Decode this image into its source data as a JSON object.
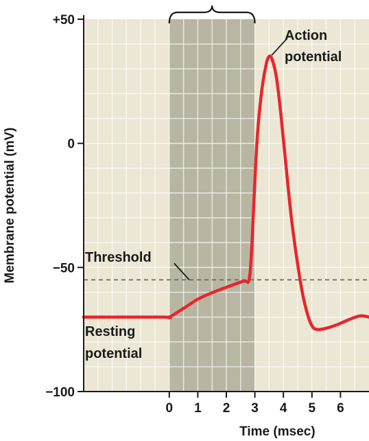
{
  "chart_data": {
    "type": "line",
    "xlabel": "Time (msec)",
    "ylabel": "Membrane potential (mV)",
    "xlim": [
      -3,
      7
    ],
    "ylim": [
      -100,
      50
    ],
    "x_ticks": [
      0,
      1,
      2,
      3,
      4,
      5,
      6
    ],
    "x_tick_labels": [
      "0",
      "1",
      "2",
      "3",
      "4",
      "5",
      "6"
    ],
    "y_ticks": [
      50,
      0,
      -50,
      -100
    ],
    "y_tick_labels": [
      "+50",
      "0",
      "−50",
      "−100"
    ],
    "grid": true,
    "shaded_interval": [
      0,
      3
    ],
    "threshold": -55,
    "colors": {
      "plot_background": "#ebe7d4",
      "shaded_band": "#b8b6a2",
      "grid": "#ffffff",
      "series": "#e8262d",
      "threshold_line": "#6a6a6a"
    },
    "series": [
      {
        "x": [
          -3,
          -0.2,
          0,
          0.5,
          1,
          1.5,
          2,
          2.6,
          2.8,
          2.9,
          3.0,
          3.1,
          3.25,
          3.4,
          3.5,
          3.6,
          3.75,
          3.9,
          4.1,
          4.3,
          4.6,
          4.8,
          5.0,
          5.2,
          5.5,
          5.9,
          6.3,
          6.7,
          7
        ],
        "y": [
          -70,
          -70,
          -70,
          -66.5,
          -62.8,
          -60.2,
          -58,
          -55.5,
          -54.8,
          -40,
          -15,
          5,
          22,
          32,
          35,
          34,
          27,
          13,
          -10,
          -32,
          -56,
          -67,
          -73.5,
          -75,
          -74.5,
          -73,
          -71,
          -69.5,
          -70
        ]
      }
    ],
    "annotations": [
      {
        "text_lines": [
          "Action",
          "potential"
        ],
        "x": 3.5,
        "y": 35
      },
      {
        "text_lines": [
          "Threshold"
        ],
        "x": 0.7,
        "y": -55
      },
      {
        "text_lines": [
          "Resting",
          "potential"
        ],
        "x": -2,
        "y": -70
      }
    ]
  }
}
